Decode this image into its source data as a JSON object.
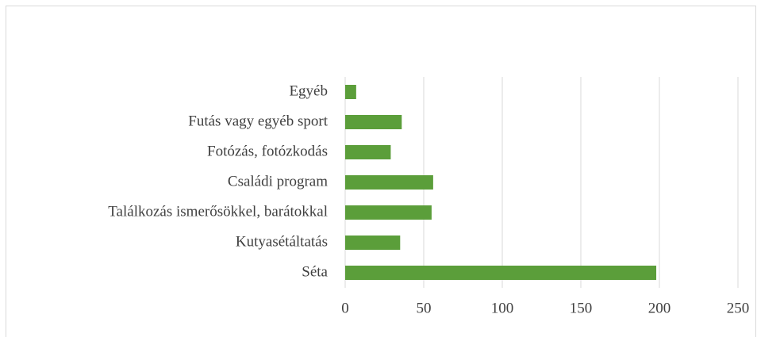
{
  "chart_data": {
    "type": "barh",
    "categories": [
      "Séta",
      "Kutyasétáltatás",
      "Találkozás ismerősökkel, barátokkal",
      "Családi program",
      "Fotózás, fotózkodás",
      "Futás vagy egyéb sport",
      "Egyéb"
    ],
    "values": [
      198,
      35,
      55,
      56,
      29,
      36,
      7
    ],
    "color": "#5b9e3a",
    "xlim": [
      0,
      250
    ],
    "xticks": [
      0,
      50,
      100,
      150,
      200,
      250
    ],
    "grid": true
  }
}
